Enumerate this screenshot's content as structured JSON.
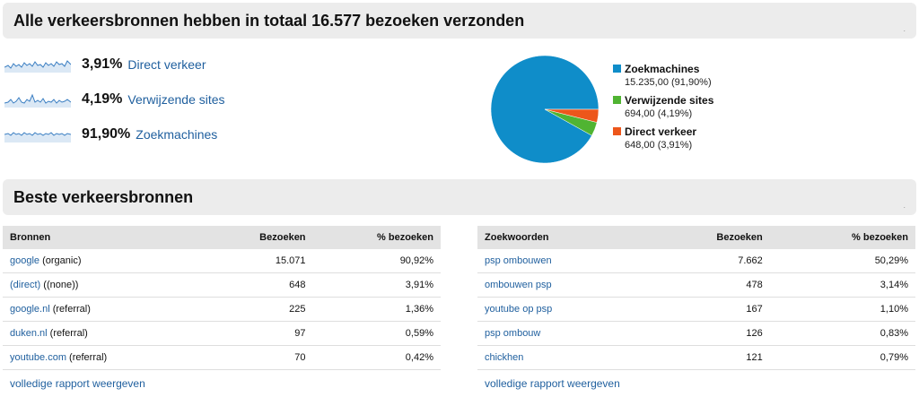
{
  "header1": {
    "title": "Alle verkeersbronnen hebben in totaal 16.577 bezoeken verzonden",
    "corner": "."
  },
  "summary": [
    {
      "pct": "3,91%",
      "label": "Direct verkeer"
    },
    {
      "pct": "4,19%",
      "label": "Verwijzende sites"
    },
    {
      "pct": "91,90%",
      "label": "Zoekmachines"
    }
  ],
  "chart_data": {
    "type": "pie",
    "slices": [
      {
        "name": "Zoekmachines",
        "value": 15235,
        "percent": 91.9,
        "color": "#0f8dc9",
        "label_value": "15.235,00 (91,90%)"
      },
      {
        "name": "Verwijzende sites",
        "value": 694,
        "percent": 4.19,
        "color": "#50b432",
        "label_value": "694,00 (4,19%)"
      },
      {
        "name": "Direct verkeer",
        "value": 648,
        "percent": 3.91,
        "color": "#ed561b",
        "label_value": "648,00 (3,91%)"
      }
    ],
    "legend_position": "right"
  },
  "header2": {
    "title": "Beste verkeersbronnen",
    "corner": "."
  },
  "sources": {
    "headers": [
      "Bronnen",
      "Bezoeken",
      "% bezoeken"
    ],
    "rows": [
      {
        "link": "google",
        "extra": " (organic)",
        "visits": "15.071",
        "pct": "90,92%"
      },
      {
        "link": "(direct)",
        "extra": " ((none))",
        "visits": "648",
        "pct": "3,91%"
      },
      {
        "link": "google.nl",
        "extra": " (referral)",
        "visits": "225",
        "pct": "1,36%"
      },
      {
        "link": "duken.nl",
        "extra": " (referral)",
        "visits": "97",
        "pct": "0,59%"
      },
      {
        "link": "youtube.com",
        "extra": " (referral)",
        "visits": "70",
        "pct": "0,42%"
      }
    ],
    "more": "volledige rapport weergeven"
  },
  "keywords": {
    "headers": [
      "Zoekwoorden",
      "Bezoeken",
      "% bezoeken"
    ],
    "rows": [
      {
        "link": "psp ombouwen",
        "visits": "7.662",
        "pct": "50,29%"
      },
      {
        "link": "ombouwen psp",
        "visits": "478",
        "pct": "3,14%"
      },
      {
        "link": "youtube op psp",
        "visits": "167",
        "pct": "1,10%"
      },
      {
        "link": "psp ombouw",
        "visits": "126",
        "pct": "0,83%"
      },
      {
        "link": "chickhen",
        "visits": "121",
        "pct": "0,79%"
      }
    ],
    "more": "volledige rapport weergeven"
  }
}
